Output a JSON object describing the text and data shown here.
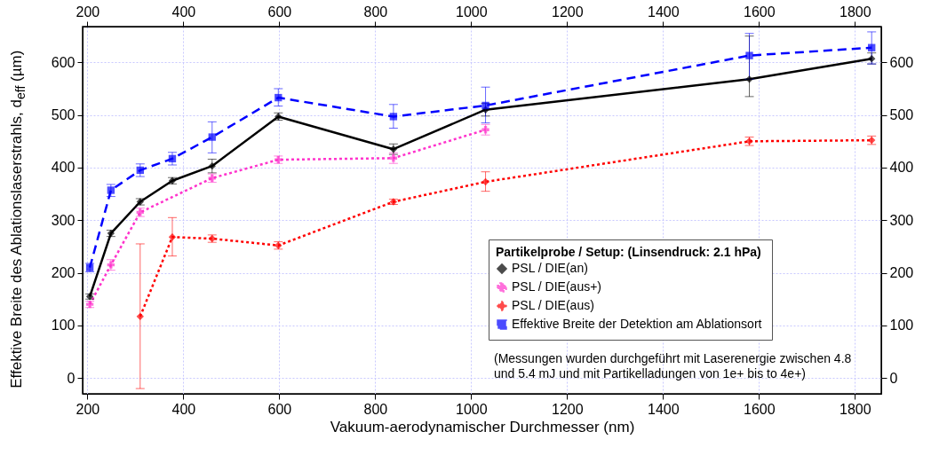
{
  "chart_data": {
    "type": "line",
    "xlabel": "Vakuum-aerodynamischer Durchmesser (nm)",
    "ylabel": "Effektive Breite des Ablationslaserstrahls, d$_{eff}$ (µm)",
    "legend_title": "Partikelprobe / Setup:  (Linsendruck: 2.1 hPa)",
    "xlim": [
      190,
      1855
    ],
    "xticks": [
      200,
      400,
      600,
      800,
      1000,
      1200,
      1400,
      1600,
      1800
    ],
    "x2lim": [
      190,
      1855
    ],
    "x2ticks": [
      200,
      400,
      600,
      800,
      1000,
      1200,
      1400,
      1600,
      1800
    ],
    "ylim": [
      -30,
      668
    ],
    "yticks": [
      0,
      100,
      200,
      300,
      400,
      500,
      600
    ],
    "y2lim": [
      -30,
      668
    ],
    "y2ticks": [
      0,
      100,
      200,
      300,
      400,
      500,
      600
    ],
    "grid": true,
    "legend": "bottom right",
    "series": [
      {
        "name": "PSL / DIE(an)",
        "color": "#000000",
        "line_style": "solid",
        "marker": "diamond",
        "x": [
          205,
          249,
          310,
          377,
          460,
          598,
          838,
          1030,
          1580,
          1835
        ],
        "values": [
          155,
          275,
          335,
          375,
          403,
          497,
          435,
          510,
          568,
          607
        ],
        "errors": [
          5,
          6,
          6,
          6,
          13,
          7,
          10,
          12,
          [
            535,
            650
          ],
          [
            597,
            618
          ]
        ]
      },
      {
        "name": "PSL / DIE(aus+)",
        "color": "#ff33cc",
        "line_style": "dotted",
        "marker": "cross",
        "x": [
          205,
          249,
          310,
          460,
          598,
          838,
          1030
        ],
        "values": [
          140,
          215,
          315,
          380,
          415,
          418,
          472
        ],
        "errors": [
          6,
          10,
          8,
          8,
          7,
          10,
          10
        ]
      },
      {
        "name": "PSL / DIE(aus)",
        "color": "#ff0000",
        "line_style": "dotted",
        "marker": "diamond",
        "x": [
          310,
          377,
          460,
          598,
          838,
          1030,
          1580,
          1835
        ],
        "values": [
          117,
          268,
          265,
          252,
          335,
          373,
          450,
          452
        ],
        "errors": [
          [
            -20,
            255
          ],
          [
            232,
            305
          ],
          7,
          7,
          5,
          [
            355,
            392
          ],
          8,
          8
        ]
      },
      {
        "name": "Effektive Breite der Detektion am Ablationsort",
        "color": "#0000ff",
        "line_style": "dashed",
        "marker": "square",
        "x": [
          205,
          249,
          310,
          377,
          460,
          598,
          838,
          1030,
          1580,
          1835
        ],
        "values": [
          210,
          357,
          395,
          417,
          458,
          533,
          497,
          518,
          613,
          628
        ],
        "errors": [
          8,
          [
            345,
            368
          ],
          12,
          12,
          [
            428,
            487
          ],
          [
            517,
            550
          ],
          [
            475,
            520
          ],
          [
            485,
            553
          ],
          [
            568,
            655
          ],
          [
            597,
            658
          ]
        ]
      }
    ],
    "annotations": [
      "(Messungen wurden durchgeführt mit Laserenergie zwischen 4.8 und 5.4 mJ und mit Partikelladungen von 1e+ bis to 4e+)"
    ]
  }
}
